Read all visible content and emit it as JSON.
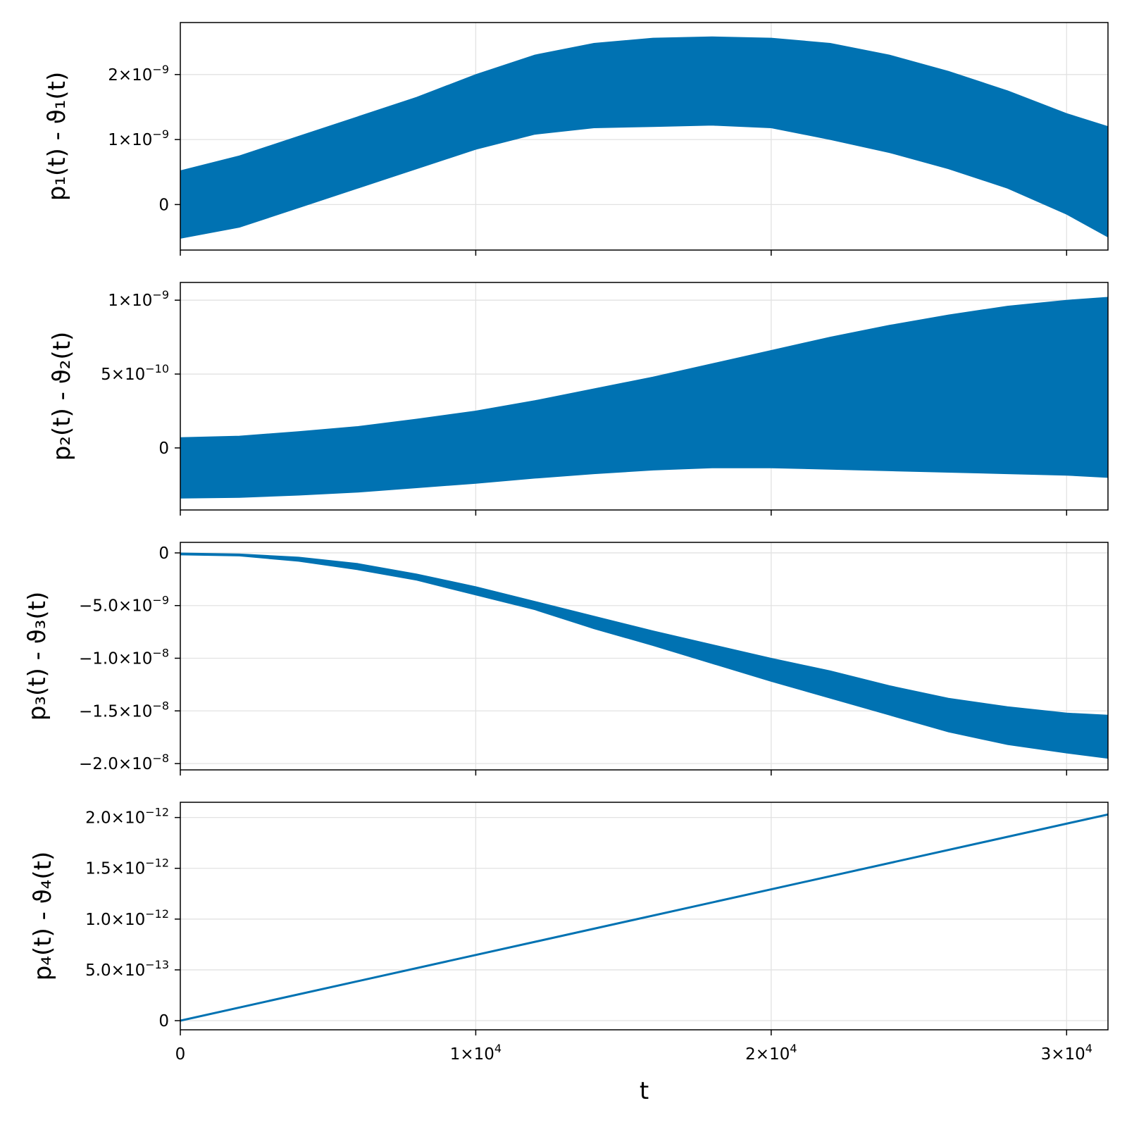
{
  "chart_data": [
    {
      "type": "line",
      "ylabel": "p₁(t) - ϑ₁(t)",
      "xlabel": "",
      "xlim": [
        0,
        31400
      ],
      "ylim": [
        -7e-10,
        2.8e-09
      ],
      "xticks": [
        {
          "v": 0,
          "b": "",
          "e": ""
        },
        {
          "v": 10000,
          "b": "",
          "e": ""
        },
        {
          "v": 20000,
          "b": "",
          "e": ""
        },
        {
          "v": 30000,
          "b": "",
          "e": ""
        }
      ],
      "yticks": [
        {
          "v": 0,
          "b": "0",
          "e": ""
        },
        {
          "v": 1e-09,
          "b": "1×10",
          "e": "−9"
        },
        {
          "v": 2e-09,
          "b": "2×10",
          "e": "−9"
        }
      ],
      "series": [
        {
          "x": [
            0,
            2000,
            4000,
            6000,
            8000,
            10000,
            12000,
            14000,
            16000,
            18000,
            20000,
            22000,
            24000,
            26000,
            28000,
            30000,
            31400
          ],
          "upper": [
            5.2e-10,
            7.5e-10,
            1.05e-09,
            1.35e-09,
            1.65e-09,
            2e-09,
            2.3e-09,
            2.48e-09,
            2.56e-09,
            2.58e-09,
            2.56e-09,
            2.48e-09,
            2.3e-09,
            2.05e-09,
            1.75e-09,
            1.4e-09,
            1.2e-09
          ],
          "lower": [
            -5.2e-10,
            -3.5e-10,
            -5e-11,
            2.5e-10,
            5.5e-10,
            8.5e-10,
            1.08e-09,
            1.18e-09,
            1.2e-09,
            1.22e-09,
            1.18e-09,
            1e-09,
            8e-10,
            5.5e-10,
            2.5e-10,
            -1.5e-10,
            -5e-10
          ]
        }
      ]
    },
    {
      "type": "line",
      "ylabel": "p₂(t) - ϑ₂(t)",
      "xlabel": "",
      "xlim": [
        0,
        31400
      ],
      "ylim": [
        -4.2e-10,
        1.12e-09
      ],
      "xticks": [
        {
          "v": 0,
          "b": "",
          "e": ""
        },
        {
          "v": 10000,
          "b": "",
          "e": ""
        },
        {
          "v": 20000,
          "b": "",
          "e": ""
        },
        {
          "v": 30000,
          "b": "",
          "e": ""
        }
      ],
      "yticks": [
        {
          "v": 0,
          "b": "0",
          "e": ""
        },
        {
          "v": 5e-10,
          "b": "5×10",
          "e": "−10"
        },
        {
          "v": 1e-09,
          "b": "1×10",
          "e": "−9"
        }
      ],
      "series": [
        {
          "x": [
            0,
            2000,
            4000,
            6000,
            8000,
            10000,
            12000,
            14000,
            16000,
            18000,
            20000,
            22000,
            24000,
            26000,
            28000,
            30000,
            31400
          ],
          "upper": [
            7e-11,
            8e-11,
            1.1e-10,
            1.45e-10,
            1.95e-10,
            2.5e-10,
            3.2e-10,
            4e-10,
            4.8e-10,
            5.7e-10,
            6.6e-10,
            7.5e-10,
            8.3e-10,
            9e-10,
            9.6e-10,
            1e-09,
            1.02e-09
          ],
          "lower": [
            -3.4e-10,
            -3.35e-10,
            -3.2e-10,
            -3e-10,
            -2.7e-10,
            -2.4e-10,
            -2.05e-10,
            -1.75e-10,
            -1.5e-10,
            -1.35e-10,
            -1.35e-10,
            -1.45e-10,
            -1.55e-10,
            -1.65e-10,
            -1.75e-10,
            -1.85e-10,
            -2e-10
          ]
        }
      ]
    },
    {
      "type": "line",
      "ylabel": "p₃(t) - ϑ₃(t)",
      "xlabel": "",
      "xlim": [
        0,
        31400
      ],
      "ylim": [
        -2.06e-08,
        1e-09
      ],
      "xticks": [
        {
          "v": 0,
          "b": "",
          "e": ""
        },
        {
          "v": 10000,
          "b": "",
          "e": ""
        },
        {
          "v": 20000,
          "b": "",
          "e": ""
        },
        {
          "v": 30000,
          "b": "",
          "e": ""
        }
      ],
      "yticks": [
        {
          "v": 0,
          "b": "0",
          "e": ""
        },
        {
          "v": -5e-09,
          "b": "−5.0×10",
          "e": "−9"
        },
        {
          "v": -1e-08,
          "b": "−1.0×10",
          "e": "−8"
        },
        {
          "v": -1.5e-08,
          "b": "−1.5×10",
          "e": "−8"
        },
        {
          "v": -2e-08,
          "b": "−2.0×10",
          "e": "−8"
        }
      ],
      "series": [
        {
          "x": [
            0,
            2000,
            4000,
            6000,
            8000,
            10000,
            12000,
            14000,
            16000,
            18000,
            20000,
            22000,
            24000,
            26000,
            28000,
            30000,
            31400
          ],
          "upper": [
            0,
            -1e-10,
            -4e-10,
            -1e-09,
            -2e-09,
            -3.2e-09,
            -4.6e-09,
            -6e-09,
            -7.4e-09,
            -8.7e-09,
            -1e-08,
            -1.12e-08,
            -1.26e-08,
            -1.38e-08,
            -1.46e-08,
            -1.52e-08,
            -1.54e-08
          ],
          "lower": [
            -2e-10,
            -3e-10,
            -8e-10,
            -1.6e-09,
            -2.6e-09,
            -4e-09,
            -5.4e-09,
            -7.2e-09,
            -8.8e-09,
            -1.05e-08,
            -1.22e-08,
            -1.38e-08,
            -1.54e-08,
            -1.7e-08,
            -1.82e-08,
            -1.9e-08,
            -1.95e-08
          ]
        }
      ]
    },
    {
      "type": "line",
      "ylabel": "p₄(t) - ϑ₄(t)",
      "xlabel": "t",
      "xlim": [
        0,
        31400
      ],
      "ylim": [
        -9e-14,
        2.15e-12
      ],
      "xticks": [
        {
          "v": 0,
          "b": "0",
          "e": ""
        },
        {
          "v": 10000,
          "b": "1×10",
          "e": "4"
        },
        {
          "v": 20000,
          "b": "2×10",
          "e": "4"
        },
        {
          "v": 30000,
          "b": "3×10",
          "e": "4"
        }
      ],
      "yticks": [
        {
          "v": 0,
          "b": "0",
          "e": ""
        },
        {
          "v": 5e-13,
          "b": "5.0×10",
          "e": "−13"
        },
        {
          "v": 1e-12,
          "b": "1.0×10",
          "e": "−12"
        },
        {
          "v": 1.5e-12,
          "b": "1.5×10",
          "e": "−12"
        },
        {
          "v": 2e-12,
          "b": "2.0×10",
          "e": "−12"
        }
      ],
      "series": [
        {
          "x": [
            0,
            31400
          ],
          "y": [
            0,
            2.03e-12
          ]
        }
      ]
    }
  ],
  "style": {
    "series_color": "#0072b2",
    "grid": true
  }
}
